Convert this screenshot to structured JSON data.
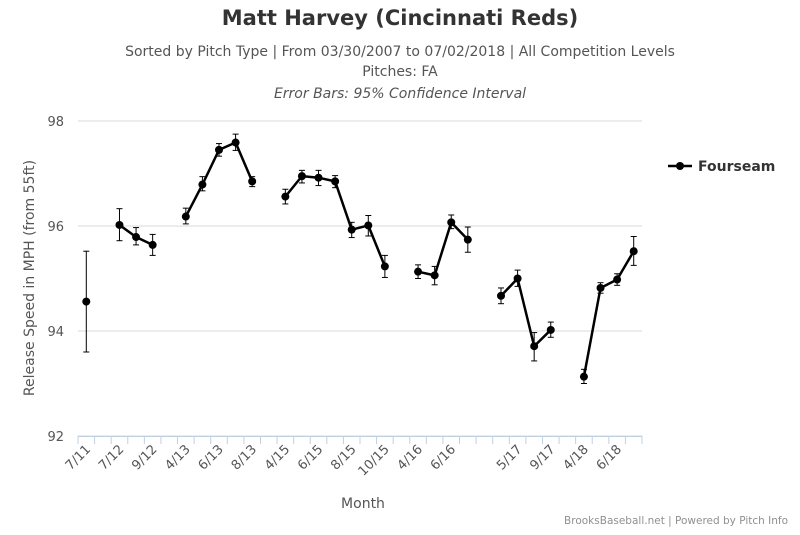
{
  "chart_data": {
    "type": "line",
    "title": "Matt Harvey (Cincinnati Reds)",
    "subtitle": "Sorted by Pitch Type | From 03/30/2007 to 07/02/2018 | All Competition Levels",
    "subtitle2": "Pitches: FA",
    "subtitle3": "Error Bars: 95% Confidence Interval",
    "xlabel": "Month",
    "ylabel": "Release Speed in MPH (from 55ft)",
    "ylim": [
      92,
      98
    ],
    "yticks": [
      "92",
      "94",
      "96",
      "98"
    ],
    "categories": [
      "7/11",
      "",
      "7/12",
      "",
      "9/12",
      "",
      "4/13",
      "",
      "6/13",
      "",
      "8/13",
      "",
      "4/15",
      "",
      "6/15",
      "",
      "8/15",
      "",
      "10/15",
      "",
      "4/16",
      "",
      "6/16",
      "",
      "",
      "",
      "5/17",
      "",
      "9/17",
      "",
      "4/18",
      "",
      "6/18",
      ""
    ],
    "series": [
      {
        "name": "Fourseam",
        "color": "#000000",
        "points": [
          {
            "i": 0,
            "y": 94.56,
            "lo": 93.6,
            "hi": 95.52
          },
          {
            "i": 2,
            "y": 96.02,
            "lo": 95.72,
            "hi": 96.33
          },
          {
            "i": 3,
            "y": 95.79,
            "lo": 95.64,
            "hi": 95.97
          },
          {
            "i": 4,
            "y": 95.64,
            "lo": 95.44,
            "hi": 95.84
          },
          {
            "i": 6,
            "y": 96.18,
            "lo": 96.04,
            "hi": 96.34
          },
          {
            "i": 7,
            "y": 96.79,
            "lo": 96.67,
            "hi": 96.94
          },
          {
            "i": 8,
            "y": 97.45,
            "lo": 97.33,
            "hi": 97.57
          },
          {
            "i": 9,
            "y": 97.59,
            "lo": 97.44,
            "hi": 97.75
          },
          {
            "i": 10,
            "y": 96.85,
            "lo": 96.75,
            "hi": 96.94
          },
          {
            "i": 12,
            "y": 96.56,
            "lo": 96.42,
            "hi": 96.7
          },
          {
            "i": 13,
            "y": 96.95,
            "lo": 96.82,
            "hi": 97.06
          },
          {
            "i": 14,
            "y": 96.92,
            "lo": 96.77,
            "hi": 97.06
          },
          {
            "i": 15,
            "y": 96.85,
            "lo": 96.73,
            "hi": 96.96
          },
          {
            "i": 16,
            "y": 95.93,
            "lo": 95.78,
            "hi": 96.07
          },
          {
            "i": 17,
            "y": 96.01,
            "lo": 95.81,
            "hi": 96.2
          },
          {
            "i": 18,
            "y": 95.23,
            "lo": 95.02,
            "hi": 95.44
          },
          {
            "i": 20,
            "y": 95.13,
            "lo": 95.0,
            "hi": 95.26
          },
          {
            "i": 21,
            "y": 95.06,
            "lo": 94.88,
            "hi": 95.23
          },
          {
            "i": 22,
            "y": 96.07,
            "lo": 95.95,
            "hi": 96.21
          },
          {
            "i": 23,
            "y": 95.74,
            "lo": 95.5,
            "hi": 95.98
          },
          {
            "i": 25,
            "y": 94.67,
            "lo": 94.52,
            "hi": 94.82
          },
          {
            "i": 26,
            "y": 95.0,
            "lo": 94.85,
            "hi": 95.16
          },
          {
            "i": 27,
            "y": 93.71,
            "lo": 93.43,
            "hi": 93.97
          },
          {
            "i": 28,
            "y": 94.02,
            "lo": 93.88,
            "hi": 94.17
          },
          {
            "i": 30,
            "y": 93.13,
            "lo": 93.0,
            "hi": 93.27
          },
          {
            "i": 31,
            "y": 94.82,
            "lo": 94.72,
            "hi": 94.92
          },
          {
            "i": 32,
            "y": 94.98,
            "lo": 94.87,
            "hi": 95.09
          },
          {
            "i": 33,
            "y": 95.52,
            "lo": 95.25,
            "hi": 95.8
          }
        ]
      }
    ],
    "grid": "horizontal",
    "legend": "right"
  },
  "credits": "BrooksBaseball.net | Powered by Pitch Info"
}
